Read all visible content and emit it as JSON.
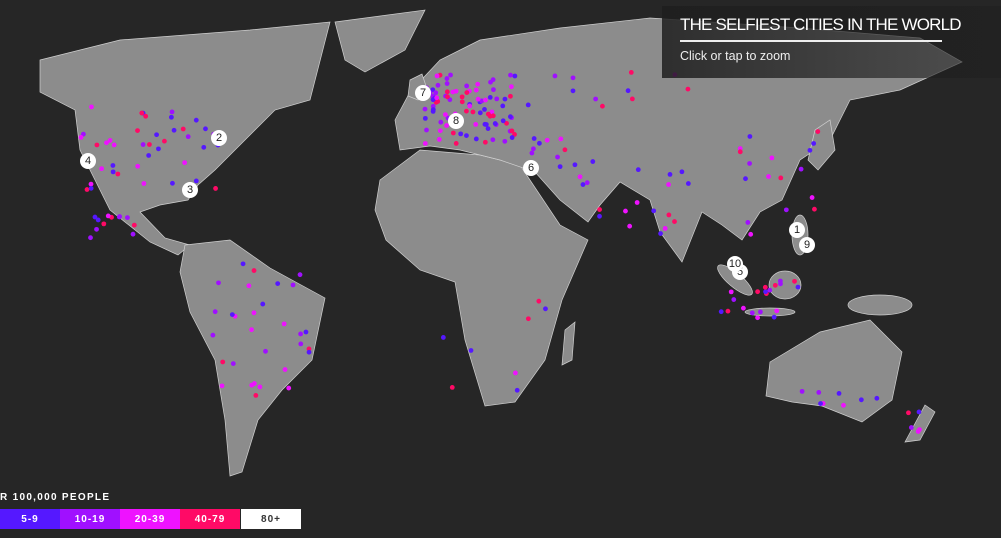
{
  "header": {
    "title": "THE SELFIEST CITIES IN THE WORLD",
    "subtitle": "Click or tap to zoom"
  },
  "legend": {
    "title": "R 100,000 PEOPLE",
    "items": [
      {
        "label": "5-9",
        "color": "#5518ff"
      },
      {
        "label": "10-19",
        "color": "#a010ff"
      },
      {
        "label": "20-39",
        "color": "#ee12ff"
      },
      {
        "label": "40-79",
        "color": "#ff0a66"
      },
      {
        "label": "80+",
        "color": "#ffffff"
      }
    ]
  },
  "colors": {
    "background": "#262626",
    "land": "#8c8c8c",
    "borders": "#c8c8c8"
  },
  "markers": [
    "1",
    "2",
    "3",
    "4",
    "5",
    "6",
    "7",
    "8",
    "9",
    "10"
  ]
}
